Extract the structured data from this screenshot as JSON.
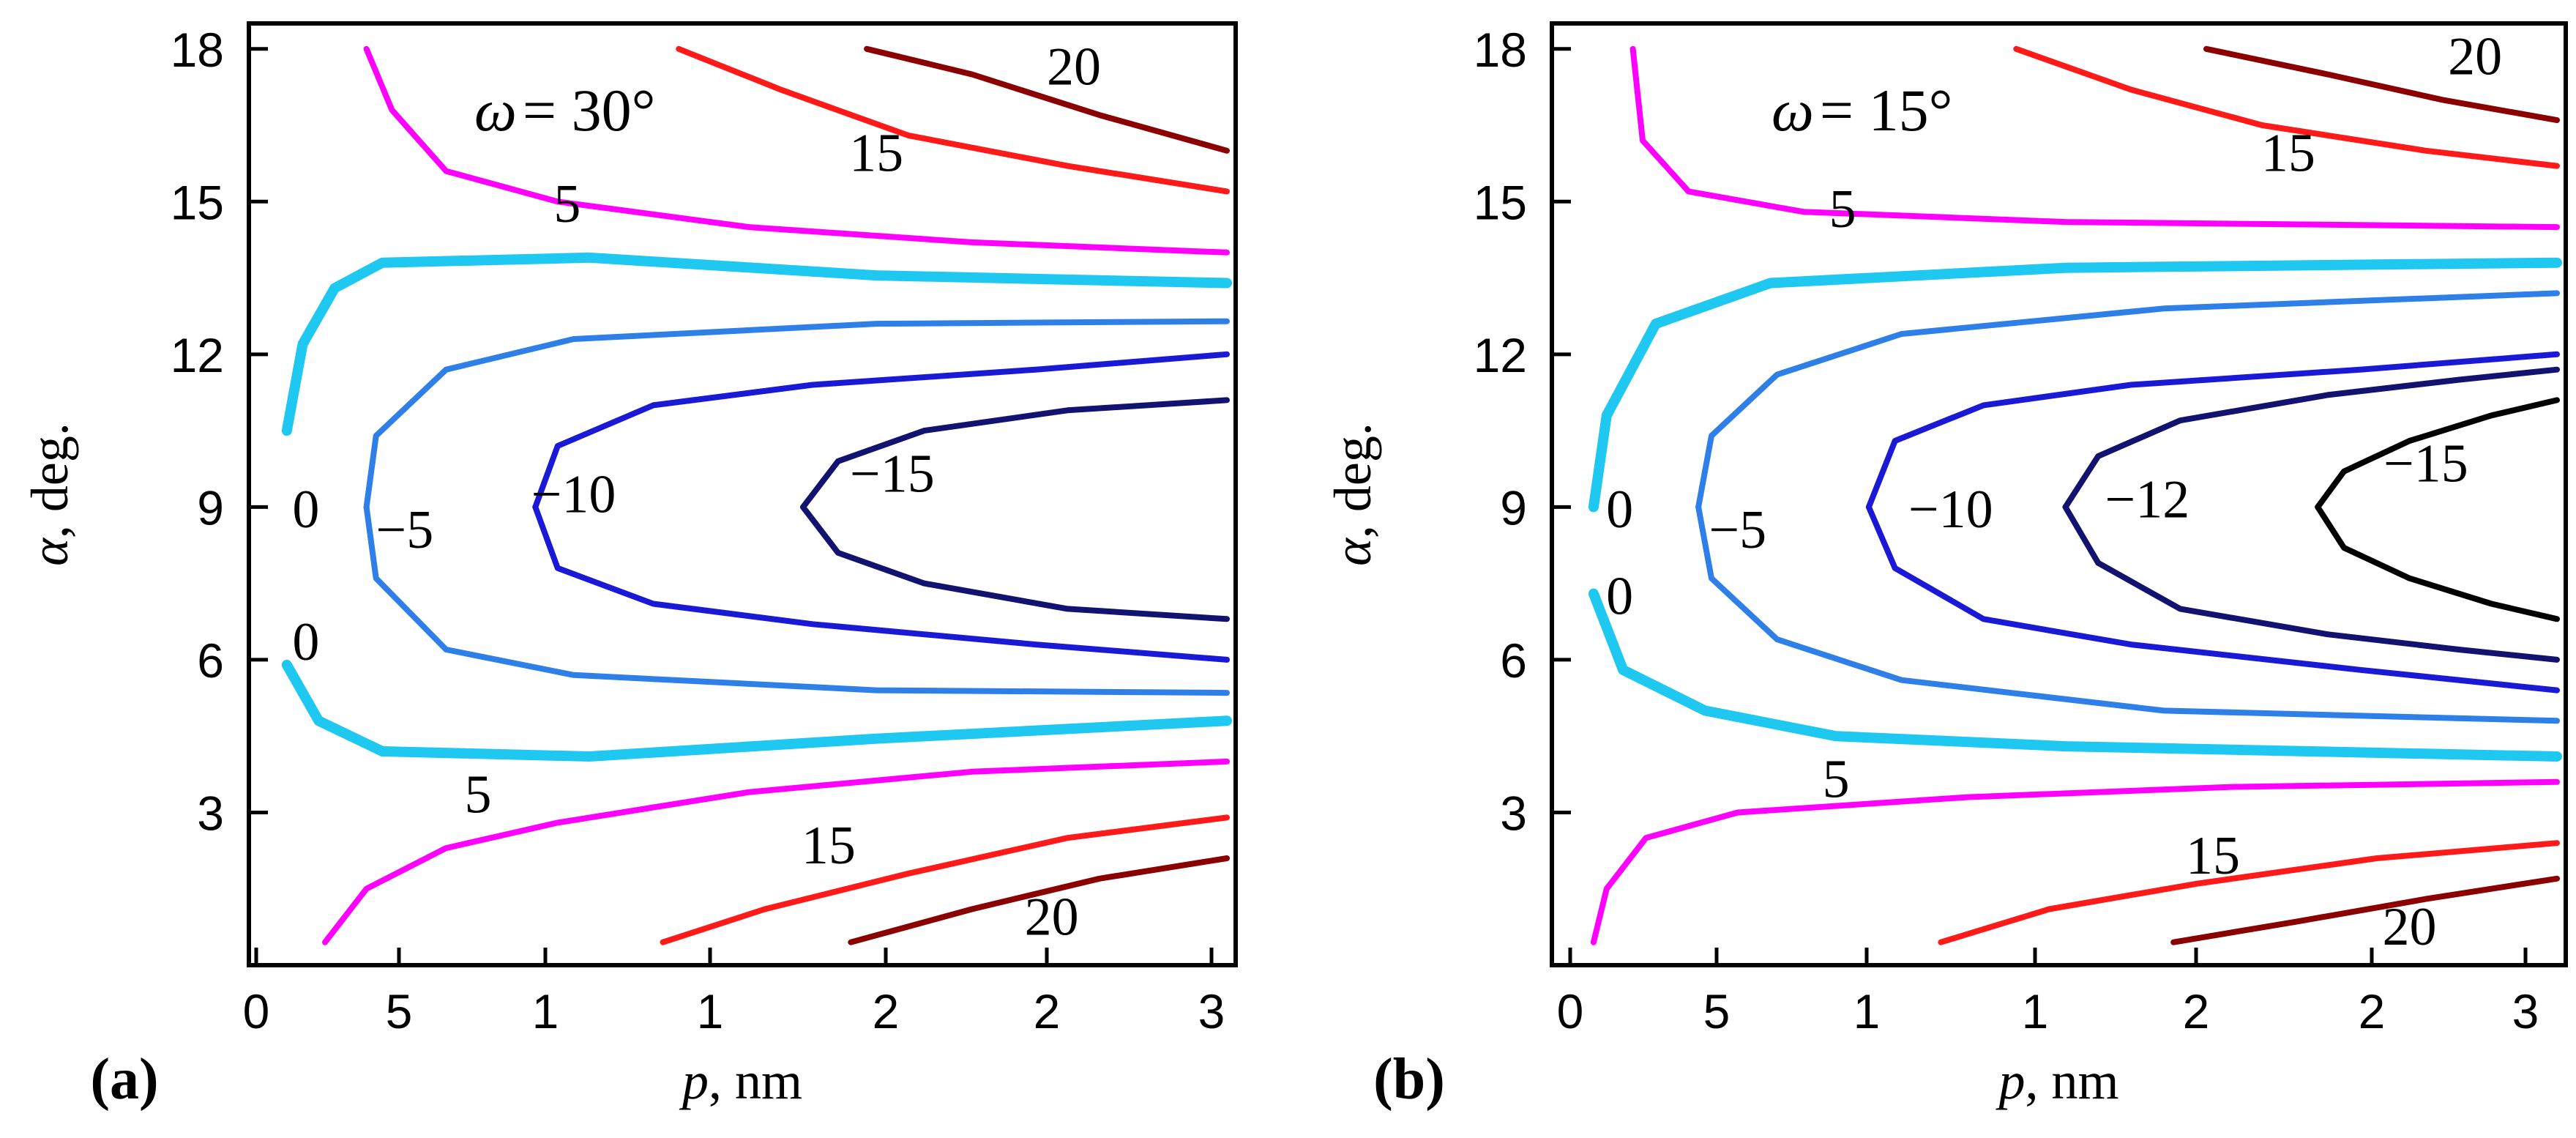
{
  "chart_data": [
    {
      "type": "contour",
      "panel_label": "(a)",
      "omega_symbol": "ω",
      "omega_value": "= 30°",
      "xlabel_var": "p",
      "xlabel_unit": ", nm",
      "ylabel_var": "α",
      "ylabel_unit": ", deg.",
      "xlim": [
        0,
        3.0
      ],
      "ylim": [
        0,
        18.5
      ],
      "x_tick_labels": [
        "0",
        "5",
        "1",
        "1",
        "2",
        "2",
        "3"
      ],
      "y_tick_labels": [
        "3",
        "6",
        "9",
        "12",
        "15",
        "18"
      ],
      "y_tick_values": [
        3,
        6,
        9,
        12,
        15,
        18
      ],
      "contours": [
        {
          "level": "20",
          "color": "#8b0000",
          "segments": [
            [
              [
                1.87,
                18.0
              ],
              [
                2.2,
                17.5
              ],
              [
                2.6,
                16.7
              ],
              [
                3.0,
                16.0
              ]
            ],
            [
              [
                1.82,
                0.45
              ],
              [
                2.2,
                1.1
              ],
              [
                2.6,
                1.7
              ],
              [
                3.0,
                2.1
              ]
            ]
          ]
        },
        {
          "level": "15",
          "color": "#ff1a1a",
          "segments": [
            [
              [
                1.28,
                18.0
              ],
              [
                1.6,
                17.2
              ],
              [
                2.0,
                16.3
              ],
              [
                2.5,
                15.7
              ],
              [
                3.0,
                15.2
              ]
            ],
            [
              [
                1.23,
                0.45
              ],
              [
                1.55,
                1.1
              ],
              [
                2.0,
                1.8
              ],
              [
                2.5,
                2.5
              ],
              [
                3.0,
                2.9
              ]
            ]
          ]
        },
        {
          "level": "5",
          "color": "#ff00ff",
          "segments": [
            [
              [
                0.3,
                18.0
              ],
              [
                0.38,
                16.8
              ],
              [
                0.55,
                15.6
              ],
              [
                0.9,
                15.0
              ],
              [
                1.5,
                14.5
              ],
              [
                2.2,
                14.2
              ],
              [
                3.0,
                14.0
              ]
            ],
            [
              [
                0.17,
                0.45
              ],
              [
                0.3,
                1.5
              ],
              [
                0.55,
                2.3
              ],
              [
                0.9,
                2.8
              ],
              [
                1.5,
                3.4
              ],
              [
                2.2,
                3.8
              ],
              [
                3.0,
                4.0
              ]
            ]
          ]
        },
        {
          "level": "0",
          "color": "#1ec8f0",
          "width": 14,
          "segments": [
            [
              [
                0.05,
                10.5
              ],
              [
                0.1,
                12.2
              ],
              [
                0.2,
                13.3
              ],
              [
                0.35,
                13.8
              ],
              [
                1.0,
                13.9
              ],
              [
                1.9,
                13.55
              ],
              [
                3.0,
                13.4
              ]
            ],
            [
              [
                0.05,
                5.9
              ],
              [
                0.15,
                4.8
              ],
              [
                0.35,
                4.2
              ],
              [
                1.0,
                4.1
              ],
              [
                1.9,
                4.45
              ],
              [
                3.0,
                4.8
              ]
            ]
          ]
        },
        {
          "level": "−5",
          "color": "#2e7fe8",
          "segments": [
            [
              [
                0.3,
                9.0
              ],
              [
                0.33,
                10.4
              ],
              [
                0.55,
                11.7
              ],
              [
                0.95,
                12.3
              ],
              [
                1.9,
                12.6
              ],
              [
                3.0,
                12.65
              ]
            ],
            [
              [
                0.3,
                9.0
              ],
              [
                0.33,
                7.6
              ],
              [
                0.55,
                6.2
              ],
              [
                0.95,
                5.7
              ],
              [
                1.9,
                5.4
              ],
              [
                3.0,
                5.35
              ]
            ]
          ]
        },
        {
          "level": "−10",
          "color": "#1a1ad6",
          "segments": [
            [
              [
                0.83,
                9.0
              ],
              [
                0.9,
                10.2
              ],
              [
                1.2,
                11.0
              ],
              [
                1.7,
                11.4
              ],
              [
                2.4,
                11.7
              ],
              [
                3.0,
                12.0
              ]
            ],
            [
              [
                0.83,
                9.0
              ],
              [
                0.9,
                7.8
              ],
              [
                1.2,
                7.1
              ],
              [
                1.7,
                6.7
              ],
              [
                2.4,
                6.3
              ],
              [
                3.0,
                6.0
              ]
            ]
          ]
        },
        {
          "level": "−15",
          "color": "#121270",
          "segments": [
            [
              [
                1.67,
                9.0
              ],
              [
                1.78,
                9.9
              ],
              [
                2.05,
                10.5
              ],
              [
                2.5,
                10.9
              ],
              [
                3.0,
                11.1
              ]
            ],
            [
              [
                1.67,
                9.0
              ],
              [
                1.78,
                8.1
              ],
              [
                2.05,
                7.5
              ],
              [
                2.5,
                7.0
              ],
              [
                3.0,
                6.8
              ]
            ]
          ]
        }
      ],
      "contour_labels": [
        {
          "text": "20",
          "x": 2.52,
          "y": 17.3
        },
        {
          "text": "15",
          "x": 1.9,
          "y": 15.6
        },
        {
          "text": "5",
          "x": 0.93,
          "y": 14.6
        },
        {
          "text": "0",
          "x": 0.11,
          "y": 8.6
        },
        {
          "text": "−5",
          "x": 0.42,
          "y": 8.2
        },
        {
          "text": "−10",
          "x": 0.95,
          "y": 8.9
        },
        {
          "text": "−15",
          "x": 1.95,
          "y": 9.3
        },
        {
          "text": "0",
          "x": 0.11,
          "y": 6.0
        },
        {
          "text": "5",
          "x": 0.65,
          "y": 3.0
        },
        {
          "text": "15",
          "x": 1.75,
          "y": 2.0
        },
        {
          "text": "20",
          "x": 2.45,
          "y": 0.6
        }
      ]
    },
    {
      "type": "contour",
      "panel_label": "(b)",
      "omega_symbol": "ω",
      "omega_value": "= 15°",
      "xlabel_var": "p",
      "xlabel_unit": ", nm",
      "ylabel_var": "α",
      "ylabel_unit": ", deg.",
      "xlim": [
        0,
        3.0
      ],
      "ylim": [
        0,
        18.5
      ],
      "x_tick_labels": [
        "0",
        "5",
        "1",
        "1",
        "2",
        "2",
        "3"
      ],
      "y_tick_labels": [
        "3",
        "6",
        "9",
        "12",
        "15",
        "18"
      ],
      "y_tick_values": [
        3,
        6,
        9,
        12,
        15,
        18
      ],
      "contours": [
        {
          "level": "20",
          "color": "#8b0000",
          "segments": [
            [
              [
                1.93,
                18.0
              ],
              [
                2.3,
                17.5
              ],
              [
                2.65,
                17.0
              ],
              [
                3.0,
                16.6
              ]
            ],
            [
              [
                1.83,
                0.45
              ],
              [
                2.2,
                0.85
              ],
              [
                2.6,
                1.3
              ],
              [
                3.0,
                1.7
              ]
            ]
          ]
        },
        {
          "level": "15",
          "color": "#ff1a1a",
          "segments": [
            [
              [
                1.35,
                18.0
              ],
              [
                1.7,
                17.2
              ],
              [
                2.1,
                16.5
              ],
              [
                2.6,
                16.0
              ],
              [
                3.0,
                15.7
              ]
            ],
            [
              [
                1.12,
                0.45
              ],
              [
                1.45,
                1.1
              ],
              [
                1.9,
                1.6
              ],
              [
                2.45,
                2.1
              ],
              [
                3.0,
                2.4
              ]
            ]
          ]
        },
        {
          "level": "5",
          "color": "#ff00ff",
          "segments": [
            [
              [
                0.18,
                18.0
              ],
              [
                0.21,
                16.2
              ],
              [
                0.35,
                15.2
              ],
              [
                0.7,
                14.8
              ],
              [
                1.5,
                14.6
              ],
              [
                3.0,
                14.5
              ]
            ],
            [
              [
                0.06,
                0.45
              ],
              [
                0.1,
                1.5
              ],
              [
                0.22,
                2.5
              ],
              [
                0.5,
                3.0
              ],
              [
                1.2,
                3.3
              ],
              [
                2.0,
                3.5
              ],
              [
                3.0,
                3.6
              ]
            ]
          ]
        },
        {
          "level": "0",
          "color": "#1ec8f0",
          "width": 14,
          "segments": [
            [
              [
                0.06,
                9.0
              ],
              [
                0.1,
                10.8
              ],
              [
                0.25,
                12.6
              ],
              [
                0.6,
                13.4
              ],
              [
                1.5,
                13.7
              ],
              [
                3.0,
                13.8
              ]
            ],
            [
              [
                0.06,
                7.3
              ],
              [
                0.15,
                5.8
              ],
              [
                0.4,
                5.0
              ],
              [
                0.8,
                4.5
              ],
              [
                1.5,
                4.3
              ],
              [
                3.0,
                4.1
              ]
            ]
          ]
        },
        {
          "level": "−5",
          "color": "#2e7fe8",
          "segments": [
            [
              [
                0.38,
                9.0
              ],
              [
                0.42,
                10.4
              ],
              [
                0.62,
                11.6
              ],
              [
                1.0,
                12.4
              ],
              [
                1.8,
                12.9
              ],
              [
                3.0,
                13.2
              ]
            ],
            [
              [
                0.38,
                9.0
              ],
              [
                0.42,
                7.6
              ],
              [
                0.62,
                6.4
              ],
              [
                1.0,
                5.6
              ],
              [
                1.8,
                5.0
              ],
              [
                3.0,
                4.8
              ]
            ]
          ]
        },
        {
          "level": "−10",
          "color": "#1a1ad6",
          "segments": [
            [
              [
                0.9,
                9.0
              ],
              [
                0.98,
                10.3
              ],
              [
                1.25,
                11.0
              ],
              [
                1.7,
                11.4
              ],
              [
                2.4,
                11.7
              ],
              [
                3.0,
                12.0
              ]
            ],
            [
              [
                0.9,
                9.0
              ],
              [
                0.98,
                7.8
              ],
              [
                1.25,
                6.8
              ],
              [
                1.7,
                6.3
              ],
              [
                2.4,
                5.8
              ],
              [
                3.0,
                5.4
              ]
            ]
          ]
        },
        {
          "level": "−12",
          "color": "#121270",
          "segments": [
            [
              [
                1.5,
                9.0
              ],
              [
                1.6,
                10.0
              ],
              [
                1.85,
                10.7
              ],
              [
                2.3,
                11.2
              ],
              [
                2.7,
                11.5
              ],
              [
                3.0,
                11.7
              ]
            ],
            [
              [
                1.5,
                9.0
              ],
              [
                1.6,
                7.9
              ],
              [
                1.85,
                7.0
              ],
              [
                2.3,
                6.5
              ],
              [
                2.7,
                6.2
              ],
              [
                3.0,
                6.0
              ]
            ]
          ]
        },
        {
          "level": "−15",
          "color": "#000000",
          "segments": [
            [
              [
                2.27,
                9.0
              ],
              [
                2.35,
                9.7
              ],
              [
                2.55,
                10.3
              ],
              [
                2.8,
                10.8
              ],
              [
                3.0,
                11.1
              ]
            ],
            [
              [
                2.27,
                9.0
              ],
              [
                2.35,
                8.2
              ],
              [
                2.55,
                7.6
              ],
              [
                2.8,
                7.1
              ],
              [
                3.0,
                6.8
              ]
            ]
          ]
        }
      ],
      "contour_labels": [
        {
          "text": "20",
          "x": 2.75,
          "y": 17.5
        },
        {
          "text": "15",
          "x": 2.18,
          "y": 15.6
        },
        {
          "text": "5",
          "x": 0.82,
          "y": 14.5
        },
        {
          "text": "0",
          "x": 0.14,
          "y": 8.6
        },
        {
          "text": "−5",
          "x": 0.5,
          "y": 8.2
        },
        {
          "text": "−10",
          "x": 1.15,
          "y": 8.6
        },
        {
          "text": "−12",
          "x": 1.75,
          "y": 8.8
        },
        {
          "text": "−15",
          "x": 2.6,
          "y": 9.5
        },
        {
          "text": "0",
          "x": 0.14,
          "y": 6.9
        },
        {
          "text": "5",
          "x": 0.8,
          "y": 3.3
        },
        {
          "text": "15",
          "x": 1.95,
          "y": 1.8
        },
        {
          "text": "20",
          "x": 2.55,
          "y": 0.4
        }
      ]
    }
  ]
}
